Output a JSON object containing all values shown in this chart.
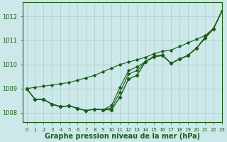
{
  "xlabel": "Graphe pression niveau de la mer (hPa)",
  "xlim": [
    -0.5,
    23
  ],
  "ylim": [
    1007.6,
    1012.6
  ],
  "yticks": [
    1008,
    1009,
    1010,
    1011,
    1012
  ],
  "xticks": [
    0,
    1,
    2,
    3,
    4,
    5,
    6,
    7,
    8,
    9,
    10,
    11,
    12,
    13,
    14,
    15,
    16,
    17,
    18,
    19,
    20,
    21,
    22,
    23
  ],
  "background_color": "#cce8e8",
  "grid_color": "#aacccc",
  "line_color": "#1a5c1a",
  "observed": [
    1009.0,
    1008.55,
    1008.55,
    1008.35,
    1008.25,
    1008.28,
    1008.18,
    1008.08,
    1008.15,
    1008.12,
    1008.12,
    1008.65,
    1009.4,
    1009.55,
    1010.12,
    1010.32,
    1010.38,
    1010.05,
    1010.22,
    1010.38,
    1010.68,
    1011.12,
    1011.48,
    1012.22
  ],
  "line_straight": [
    1009.0,
    1009.05,
    1009.1,
    1009.15,
    1009.2,
    1009.25,
    1009.35,
    1009.45,
    1009.55,
    1009.7,
    1009.85,
    1010.0,
    1010.1,
    1010.2,
    1010.3,
    1010.45,
    1010.55,
    1010.6,
    1010.75,
    1010.9,
    1011.05,
    1011.2,
    1011.5,
    1012.22
  ],
  "line_mid1": [
    1009.0,
    1008.55,
    1008.55,
    1008.35,
    1008.25,
    1008.28,
    1008.18,
    1008.08,
    1008.15,
    1008.12,
    1008.3,
    1009.05,
    1009.75,
    1009.9,
    1010.12,
    1010.35,
    1010.4,
    1010.05,
    1010.22,
    1010.38,
    1010.68,
    1011.08,
    1011.48,
    1012.22
  ],
  "line_mid2": [
    1009.0,
    1008.55,
    1008.55,
    1008.35,
    1008.25,
    1008.28,
    1008.18,
    1008.08,
    1008.15,
    1008.12,
    1008.2,
    1008.85,
    1009.6,
    1009.75,
    1010.12,
    1010.32,
    1010.38,
    1010.05,
    1010.22,
    1010.38,
    1010.68,
    1011.12,
    1011.48,
    1012.22
  ],
  "xlabel_fontsize": 7,
  "tick_fontsize": 6,
  "tick_fontsize_x": 5
}
